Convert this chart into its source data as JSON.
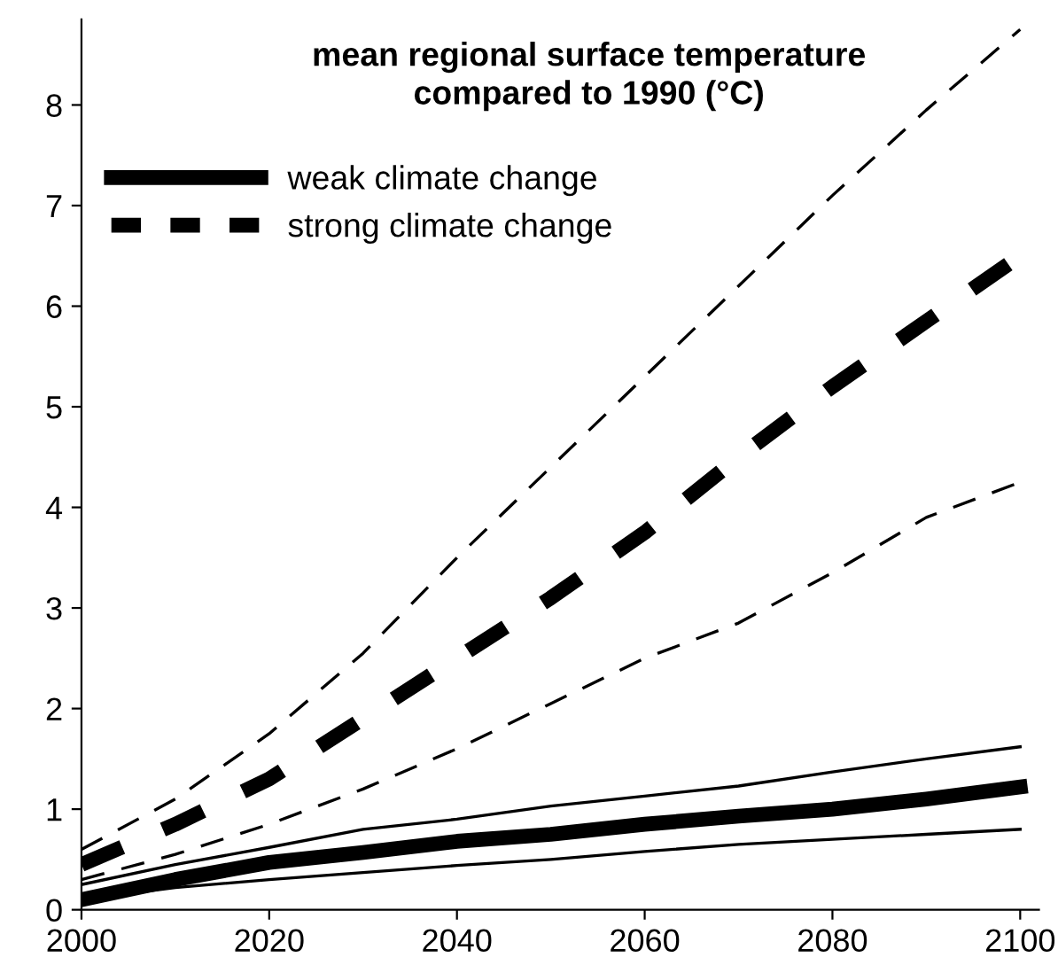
{
  "chart_data": {
    "type": "line",
    "title": "mean regional surface temperature\ncompared to 1990 (°C)",
    "x": [
      2000,
      2010,
      2020,
      2030,
      2040,
      2050,
      2060,
      2070,
      2080,
      2090,
      2100
    ],
    "series": [
      {
        "color": "#000000",
        "line_style": "dashed",
        "values": [
          0.6,
          1.1,
          1.75,
          2.55,
          3.5,
          4.4,
          5.3,
          6.2,
          7.1,
          7.95,
          8.75
        ]
      },
      {
        "name": "strong climate change",
        "color": "#000000",
        "line_style": "dashed",
        "values": [
          0.45,
          0.85,
          1.3,
          1.9,
          2.5,
          3.1,
          3.75,
          4.5,
          5.2,
          5.85,
          6.5
        ]
      },
      {
        "color": "#000000",
        "line_style": "dashed",
        "values": [
          0.3,
          0.55,
          0.85,
          1.2,
          1.6,
          2.05,
          2.5,
          2.85,
          3.35,
          3.9,
          4.25
        ]
      },
      {
        "color": "#000000",
        "line_style": "solid",
        "values": [
          0.25,
          0.45,
          0.62,
          0.8,
          0.9,
          1.03,
          1.13,
          1.23,
          1.37,
          1.5,
          1.62
        ]
      },
      {
        "name": "weak climate change",
        "color": "#000000",
        "line_style": "solid",
        "values": [
          0.1,
          0.3,
          0.47,
          0.57,
          0.68,
          0.75,
          0.85,
          0.93,
          1.0,
          1.1,
          1.22
        ]
      },
      {
        "color": "#000000",
        "line_style": "solid",
        "values": [
          0.1,
          0.22,
          0.3,
          0.37,
          0.44,
          0.5,
          0.58,
          0.65,
          0.7,
          0.75,
          0.8
        ]
      }
    ],
    "xlim": [
      2000,
      2102
    ],
    "ylim": [
      0,
      8.85
    ],
    "xticks": [
      2000,
      2020,
      2040,
      2060,
      2080,
      2100
    ],
    "yticks": [
      0,
      1,
      2,
      3,
      4,
      5,
      6,
      7,
      8
    ],
    "legend": "top left",
    "grid": false,
    "marker": "none"
  }
}
